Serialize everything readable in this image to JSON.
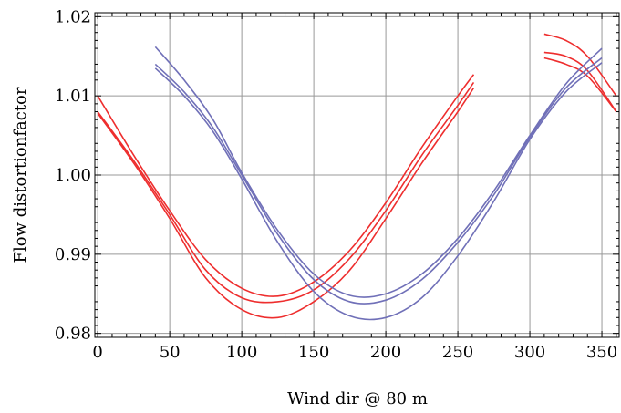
{
  "chart_data": {
    "type": "line",
    "title": "",
    "xlabel": "Wind dir @ 80 m",
    "ylabel": "Flow distortionfactor",
    "xlim": [
      -2,
      362
    ],
    "ylim": [
      0.9795,
      1.0205
    ],
    "x_ticks": [
      0,
      50,
      100,
      150,
      200,
      250,
      300,
      350
    ],
    "x_tick_labels": [
      "0",
      "50",
      "100",
      "150",
      "200",
      "250",
      "300",
      "350"
    ],
    "y_ticks": [
      0.98,
      0.99,
      1.0,
      1.01,
      1.02
    ],
    "y_tick_labels": [
      "0.98",
      "0.99",
      "1.00",
      "1.01",
      "1.02"
    ],
    "grid": true,
    "colors": {
      "red": "#ee2e2e",
      "blue": "#7070b8",
      "grid": "#999999",
      "frame": "#000000"
    },
    "series": [
      {
        "color": "red",
        "segments": [
          {
            "x": [
              0,
              25,
              50,
              75,
              100,
              125,
              150,
              175,
              200,
              225,
              250,
              261
            ],
            "y": [
              1.01,
              1.0025,
              0.9955,
              0.9893,
              0.9857,
              0.9847,
              0.9865,
              0.9905,
              0.9965,
              1.0035,
              1.01,
              1.0127
            ]
          },
          {
            "x": [
              310,
              325,
              340,
              360
            ],
            "y": [
              1.0178,
              1.017,
              1.015,
              1.01
            ]
          }
        ]
      },
      {
        "color": "red",
        "segments": [
          {
            "x": [
              0,
              25,
              50,
              75,
              100,
              125,
              150,
              175,
              200,
              225,
              250,
              261
            ],
            "y": [
              1.008,
              1.0018,
              0.995,
              0.988,
              0.9845,
              0.984,
              0.9855,
              0.9895,
              0.9955,
              1.0025,
              1.0088,
              1.0117
            ]
          },
          {
            "x": [
              310,
              325,
              340,
              360
            ],
            "y": [
              1.0155,
              1.015,
              1.0132,
              1.008
            ]
          }
        ]
      },
      {
        "color": "red",
        "segments": [
          {
            "x": [
              0,
              25,
              50,
              75,
              100,
              125,
              150,
              175,
              200,
              225,
              250,
              261
            ],
            "y": [
              1.0078,
              1.0015,
              0.9945,
              0.987,
              0.983,
              0.982,
              0.984,
              0.988,
              0.9945,
              1.0015,
              1.008,
              1.011
            ]
          },
          {
            "x": [
              310,
              325,
              340,
              360
            ],
            "y": [
              1.0148,
              1.014,
              1.0125,
              1.008
            ]
          }
        ]
      },
      {
        "color": "blue",
        "segments": [
          {
            "x": [
              40,
              60,
              80,
              100,
              125,
              150,
              175,
              200,
              225,
              250,
              275,
              300,
              325,
              350
            ],
            "y": [
              1.0162,
              1.012,
              1.007,
              1.0003,
              0.993,
              0.9875,
              0.9848,
              0.985,
              0.9875,
              0.992,
              0.998,
              1.005,
              1.0115,
              1.016
            ]
          }
        ]
      },
      {
        "color": "blue",
        "segments": [
          {
            "x": [
              40,
              60,
              80,
              100,
              125,
              150,
              175,
              200,
              225,
              250,
              275,
              300,
              325,
              350
            ],
            "y": [
              1.014,
              1.0105,
              1.006,
              1.0,
              0.9925,
              0.9868,
              0.984,
              0.9842,
              0.9868,
              0.9915,
              0.9975,
              1.0048,
              1.011,
              1.0148
            ]
          }
        ]
      },
      {
        "color": "blue",
        "segments": [
          {
            "x": [
              40,
              60,
              80,
              100,
              125,
              150,
              175,
              200,
              225,
              250,
              275,
              300,
              325,
              350
            ],
            "y": [
              1.0135,
              1.01,
              1.0055,
              0.9995,
              0.9915,
              0.9853,
              0.9822,
              0.982,
              0.9845,
              0.9898,
              0.9967,
              1.0045,
              1.0105,
              1.0142
            ]
          }
        ]
      }
    ]
  }
}
